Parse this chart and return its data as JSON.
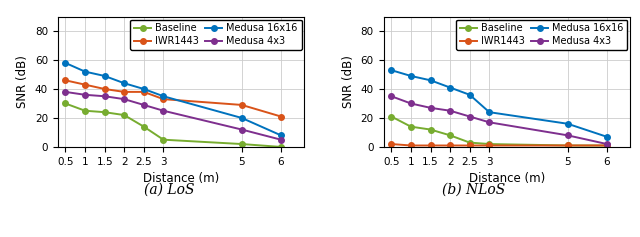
{
  "x": [
    0.5,
    1,
    1.5,
    2,
    2.5,
    3,
    5,
    6
  ],
  "los": {
    "baseline": [
      30,
      25,
      24,
      22,
      14,
      5,
      2,
      0
    ],
    "iwr1443": [
      46,
      43,
      40,
      38,
      38,
      33,
      29,
      21
    ],
    "medusa_16x16": [
      58,
      52,
      49,
      44,
      40,
      35,
      20,
      8
    ],
    "medusa_4x3": [
      38,
      36,
      35,
      33,
      29,
      25,
      12,
      5
    ]
  },
  "nlos": {
    "baseline": [
      21,
      14,
      12,
      8,
      3,
      2,
      1,
      1
    ],
    "iwr1443": [
      2,
      1,
      1,
      1,
      1,
      1,
      1,
      1
    ],
    "medusa_16x16": [
      53,
      49,
      46,
      41,
      36,
      24,
      16,
      7
    ],
    "medusa_4x3": [
      35,
      30,
      27,
      25,
      21,
      17,
      8,
      2
    ]
  },
  "colors": {
    "baseline": "#77ac30",
    "iwr1443": "#d95319",
    "medusa_16x16": "#0072bd",
    "medusa_4x3": "#7e2f8e"
  },
  "labels": {
    "baseline": "Baseline",
    "iwr1443": "IWR1443",
    "medusa_16x16": "Medusa 16x16",
    "medusa_4x3": "Medusa 4x3"
  },
  "ylabel": "SNR (dB)",
  "xlabel": "Distance (m)",
  "ylim": [
    0,
    90
  ],
  "yticks": [
    0,
    20,
    40,
    60,
    80
  ],
  "xticks": [
    0.5,
    1,
    1.5,
    2,
    2.5,
    3,
    5,
    6
  ],
  "caption_a": "(a) LoS",
  "caption_b": "(b) NLoS",
  "caption_fontsize": 10
}
